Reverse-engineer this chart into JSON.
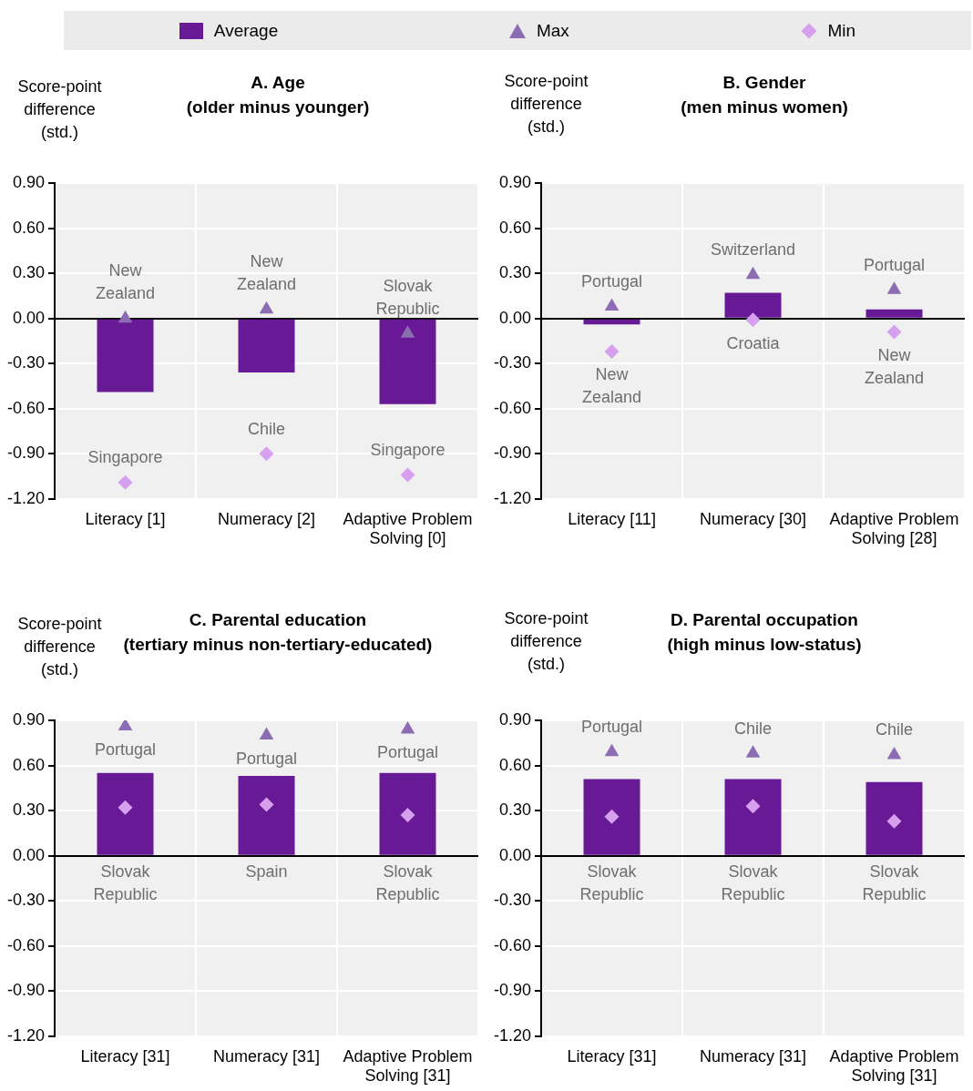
{
  "chart_data": [
    {
      "type": "bar",
      "title": "A. Age",
      "subtitle": "(older minus younger)",
      "ylabel": "Score-point difference (std.)",
      "categories": [
        "Literacy [1]",
        "Numeracy [2]",
        "Adaptive Problem Solving [0]"
      ],
      "ylim": [
        -1.2,
        0.9
      ],
      "yticks": [
        {
          "value": -1.2,
          "label": "-1.20"
        },
        {
          "value": -0.9,
          "label": "-0.90"
        },
        {
          "value": -0.6,
          "label": "-0.60"
        },
        {
          "value": -0.3,
          "label": "-0.30"
        },
        {
          "value": 0,
          "label": "0.00"
        },
        {
          "value": 0.3,
          "label": "0.30"
        },
        {
          "value": 0.6,
          "label": "0.60"
        },
        {
          "value": 0.9,
          "label": "0.90"
        }
      ],
      "grid": true,
      "legend": "top",
      "series": [
        {
          "name": "Average",
          "type": "bar",
          "color": "#681a96",
          "values": [
            -0.49,
            -0.36,
            -0.57
          ]
        },
        {
          "name": "Max",
          "type": "scatter",
          "marker": "triangle",
          "color": "#8c6db3",
          "values": [
            0.0,
            0.06,
            -0.1
          ]
        },
        {
          "name": "Min",
          "type": "scatter",
          "marker": "diamond",
          "color": "#d7a0ef",
          "values": [
            -1.09,
            -0.9,
            -1.04
          ]
        }
      ],
      "annotations": [
        {
          "text": "New Zealand",
          "x": "Literacy [1]",
          "y": 0.0
        },
        {
          "text": "New Zealand",
          "x": "Numeracy [2]",
          "y": 0.06
        },
        {
          "text": "Slovak Republic",
          "x": "Adaptive Problem Solving [0]",
          "y": -0.1
        },
        {
          "text": "Singapore",
          "x": "Literacy [1]",
          "y": -1.09
        },
        {
          "text": "Chile",
          "x": "Numeracy [2]",
          "y": -0.9
        },
        {
          "text": "Singapore",
          "x": "Adaptive Problem Solving [0]",
          "y": -1.04
        }
      ]
    },
    {
      "type": "bar",
      "title": "B. Gender",
      "subtitle": "(men minus women)",
      "ylabel": "Score-point difference (std.)",
      "categories": [
        "Literacy [11]",
        "Numeracy [30]",
        "Adaptive Problem Solving [28]"
      ],
      "ylim": [
        -1.2,
        0.9
      ],
      "yticks": [
        {
          "value": -1.2,
          "label": "-1.20"
        },
        {
          "value": -0.9,
          "label": "-0.90"
        },
        {
          "value": -0.6,
          "label": "-0.60"
        },
        {
          "value": -0.3,
          "label": "-0.30"
        },
        {
          "value": 0,
          "label": "0.00"
        },
        {
          "value": 0.3,
          "label": "0.30"
        },
        {
          "value": 0.6,
          "label": "0.60"
        },
        {
          "value": 0.9,
          "label": "0.90"
        }
      ],
      "grid": true,
      "series": [
        {
          "type": "bar",
          "color": "#681a96",
          "values": [
            -0.04,
            0.17,
            0.06
          ]
        },
        {
          "type": "scatter",
          "marker": "triangle",
          "color": "#8c6db3",
          "values": [
            0.08,
            0.29,
            0.19
          ]
        },
        {
          "type": "scatter",
          "marker": "diamond",
          "color": "#d7a0ef",
          "values": [
            -0.22,
            -0.01,
            -0.09
          ]
        }
      ],
      "annotations": [
        {
          "text": "Portugal",
          "x": "Literacy [11]",
          "y": 0.08
        },
        {
          "text": "Switzerland",
          "x": "Numeracy [30]",
          "y": 0.29
        },
        {
          "text": "Portugal",
          "x": "Adaptive Problem Solving [28]",
          "y": 0.19
        },
        {
          "text": "New Zealand",
          "x": "Literacy [11]",
          "y": -0.22
        },
        {
          "text": "Croatia",
          "x": "Numeracy [30]",
          "y": -0.01
        },
        {
          "text": "New Zealand",
          "x": "Adaptive Problem Solving [28]",
          "y": -0.09
        }
      ]
    },
    {
      "type": "bar",
      "title": "C. Parental education",
      "subtitle": "(tertiary minus non-tertiary-educated)",
      "ylabel": "Score-point difference (std.)",
      "categories": [
        "Literacy [31]",
        "Numeracy [31]",
        "Adaptive Problem Solving [31]"
      ],
      "ylim": [
        -1.2,
        0.9
      ],
      "yticks": [
        {
          "value": -1.2,
          "label": "-1.20"
        },
        {
          "value": -0.9,
          "label": "-0.90"
        },
        {
          "value": -0.6,
          "label": "-0.60"
        },
        {
          "value": -0.3,
          "label": "-0.30"
        },
        {
          "value": 0,
          "label": "0.00"
        },
        {
          "value": 0.3,
          "label": "0.30"
        },
        {
          "value": 0.6,
          "label": "0.60"
        },
        {
          "value": 0.9,
          "label": "0.90"
        }
      ],
      "grid": true,
      "series": [
        {
          "type": "bar",
          "color": "#681a96",
          "values": [
            0.55,
            0.53,
            0.55
          ]
        },
        {
          "type": "scatter",
          "marker": "triangle",
          "color": "#8c6db3",
          "values": [
            0.86,
            0.8,
            0.84
          ]
        },
        {
          "type": "scatter",
          "marker": "diamond",
          "color": "#d7a0ef",
          "values": [
            0.32,
            0.34,
            0.27
          ]
        }
      ],
      "annotations": [
        {
          "text": "Portugal",
          "x": "Literacy [31]",
          "y": 0.86
        },
        {
          "text": "Portugal",
          "x": "Numeracy [31]",
          "y": 0.8
        },
        {
          "text": "Portugal",
          "x": "Adaptive Problem Solving [31]",
          "y": 0.84
        },
        "Slovak Republic",
        "Spain",
        "Slovak Republic"
      ]
    },
    {
      "type": "bar",
      "title": "D. Parental occupation",
      "subtitle": "(high minus low-status)",
      "ylabel": "Score-point difference (std.)",
      "categories": [
        "Literacy [31]",
        "Numeracy [31]",
        "Adaptive Problem Solving [31]"
      ],
      "ylim": [
        -1.2,
        0.9
      ],
      "yticks": [
        {
          "value": -1.2,
          "label": "-1.20"
        },
        {
          "value": -0.9,
          "label": "-0.90"
        },
        {
          "value": -0.6,
          "label": "-0.60"
        },
        {
          "value": -0.3,
          "label": "-0.30"
        },
        {
          "value": 0,
          "label": "0.00"
        },
        {
          "value": 0.3,
          "label": "0.30"
        },
        {
          "value": 0.6,
          "label": "0.60"
        },
        {
          "value": 0.9,
          "label": "0.90"
        }
      ],
      "grid": true,
      "series": [
        {
          "type": "bar",
          "color": "#681a96",
          "values": [
            0.51,
            0.51,
            0.49
          ]
        },
        {
          "type": "scatter",
          "marker": "triangle",
          "color": "#8c6db3",
          "values": [
            0.69,
            0.68,
            0.67
          ]
        },
        {
          "type": "scatter",
          "marker": "diamond",
          "color": "#d7a0ef",
          "values": [
            0.26,
            0.33,
            0.23
          ]
        }
      ],
      "annotations": [
        {
          "text": "Portugal",
          "x": "Literacy [31]",
          "y": 0.69
        },
        {
          "text": "Chile",
          "x": "Numeracy [31]",
          "y": 0.68
        },
        {
          "text": "Chile",
          "x": "Adaptive Problem Solving [31]",
          "y": 0.67
        },
        "Slovak Republic",
        "Slovak Republic",
        "Slovak Republic"
      ]
    }
  ]
}
